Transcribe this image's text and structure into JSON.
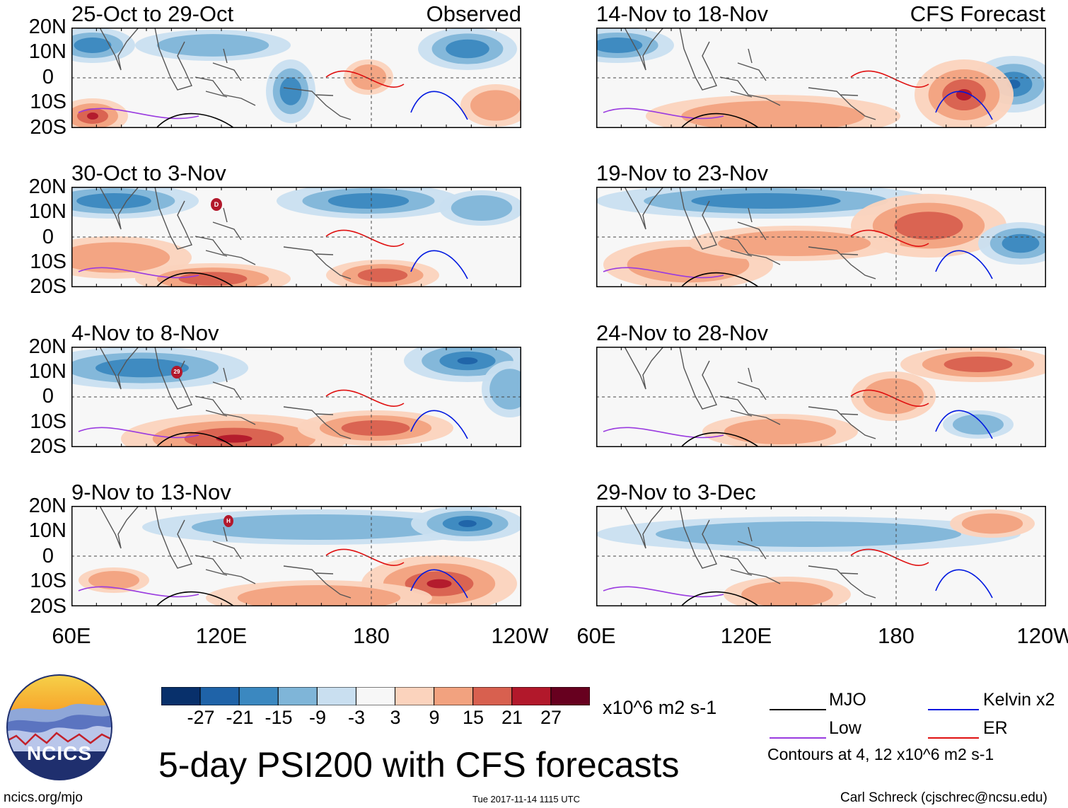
{
  "figure": {
    "main_title": "5-day PSI200 with CFS forecasts",
    "units": "x10^6 m2 s-1",
    "observed_tag": "Observed",
    "forecast_tag": "CFS Forecast",
    "timestamp": "Tue 2017-11-14 1115 UTC",
    "site": "ncics.org/mjo",
    "author": "Carl Schreck (cjschrec@ncsu.edu)",
    "logo_text": "NCICS"
  },
  "panels": [
    {
      "title": "25-Oct to 29-Oct",
      "column": "observed"
    },
    {
      "title": "30-Oct to 3-Nov",
      "column": "observed"
    },
    {
      "title": "4-Nov to 8-Nov",
      "column": "observed"
    },
    {
      "title": "9-Nov to 13-Nov",
      "column": "observed"
    },
    {
      "title": "14-Nov to 18-Nov",
      "column": "forecast"
    },
    {
      "title": "19-Nov to 23-Nov",
      "column": "forecast"
    },
    {
      "title": "24-Nov to 28-Nov",
      "column": "forecast"
    },
    {
      "title": "29-Nov to 3-Dec",
      "column": "forecast"
    }
  ],
  "lat_labels": [
    "20N",
    "10N",
    "0",
    "10S",
    "20S"
  ],
  "lon_labels": [
    "60E",
    "120E",
    "180",
    "120W"
  ],
  "colorbar": {
    "labels": [
      "-27",
      "-21",
      "-15",
      "-9",
      "-3",
      "3",
      "9",
      "15",
      "21",
      "27"
    ],
    "colors": [
      "#08306b",
      "#1f63a8",
      "#3b88c0",
      "#7fb5d8",
      "#c9dff0",
      "#f7f7f7",
      "#fbd3bd",
      "#f2a27f",
      "#d8604f",
      "#b2182b",
      "#67001f"
    ]
  },
  "legend": {
    "items": [
      {
        "label": "MJO",
        "color": "#000000"
      },
      {
        "label": "Kelvin x2",
        "color": "#0018e0"
      },
      {
        "label": "Low",
        "color": "#9a3be0"
      },
      {
        "label": "ER",
        "color": "#e01010"
      }
    ],
    "note": "Contours at 4, 12 x10^6 m2 s-1"
  },
  "storm_markers": [
    {
      "panel": 1,
      "label": "D"
    },
    {
      "panel": 2,
      "label": "29"
    },
    {
      "panel": 3,
      "label": "H"
    }
  ]
}
